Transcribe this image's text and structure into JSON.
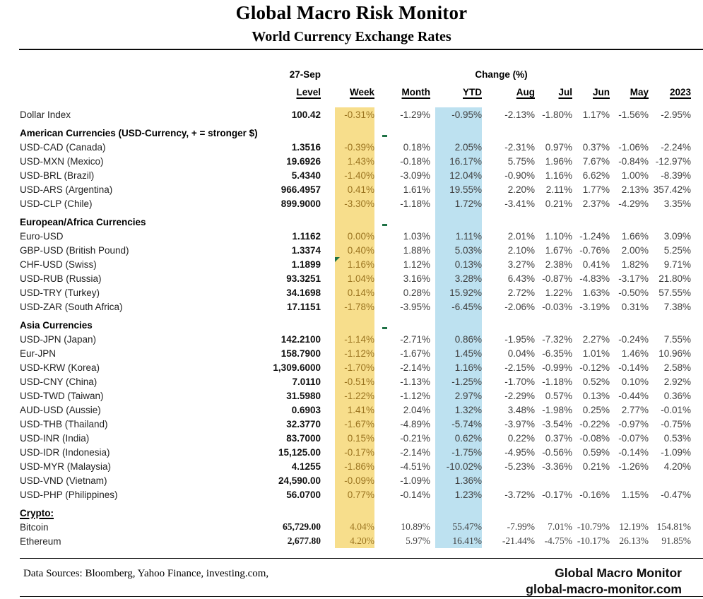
{
  "title": "Global Macro Risk Monitor",
  "subtitle": "World Currency Exchange Rates",
  "table": {
    "date_label": "27-Sep",
    "change_label": "Change (%)",
    "columns": [
      "Level",
      "Week",
      "Month",
      "YTD",
      "Aug",
      "Jul",
      "Jun",
      "May",
      "2023"
    ],
    "rows": [
      {
        "type": "data",
        "label": "Dollar Index",
        "level": "100.42",
        "week": "-0.31%",
        "month": "-1.29%",
        "ytd": "-0.95%",
        "aug": "-2.13%",
        "jul": "-1.80%",
        "jun": "1.17%",
        "may": "-1.56%",
        "y2023": "-2.95%"
      },
      {
        "type": "section",
        "label": "American Currencies (USD-Currency, + = stronger $)",
        "green_dash": true
      },
      {
        "type": "data",
        "label": "USD-CAD (Canada)",
        "level": "1.3516",
        "week": "-0.39%",
        "month": "0.18%",
        "ytd": "2.05%",
        "aug": "-2.31%",
        "jul": "0.97%",
        "jun": "0.37%",
        "may": "-1.06%",
        "y2023": "-2.24%"
      },
      {
        "type": "data",
        "label": "USD-MXN  (Mexico)",
        "level": "19.6926",
        "week": "1.43%",
        "month": "-0.18%",
        "ytd": "16.17%",
        "aug": "5.75%",
        "jul": "1.96%",
        "jun": "7.67%",
        "may": "-0.84%",
        "y2023": "-12.97%"
      },
      {
        "type": "data",
        "label": "USD-BRL (Brazil)",
        "level": "5.4340",
        "week": "-1.40%",
        "month": "-3.09%",
        "ytd": "12.04%",
        "aug": "-0.90%",
        "jul": "1.16%",
        "jun": "6.62%",
        "may": "1.00%",
        "y2023": "-8.39%"
      },
      {
        "type": "data",
        "label": "USD-ARS (Argentina)",
        "level": "966.4957",
        "week": "0.41%",
        "month": "1.61%",
        "ytd": "19.55%",
        "aug": "2.20%",
        "jul": "2.11%",
        "jun": "1.77%",
        "may": "2.13%",
        "y2023": "357.42%"
      },
      {
        "type": "data",
        "label": "USD-CLP (Chile)",
        "level": "899.9000",
        "week": "-3.30%",
        "month": "-1.18%",
        "ytd": "1.72%",
        "aug": "-3.41%",
        "jul": "0.21%",
        "jun": "2.37%",
        "may": "-4.29%",
        "y2023": "3.35%"
      },
      {
        "type": "section",
        "label": "European/Africa Currencies",
        "green_dash": true
      },
      {
        "type": "data",
        "label": "Euro-USD",
        "level": "1.1162",
        "week": "0.00%",
        "month": "1.03%",
        "ytd": "1.11%",
        "aug": "2.01%",
        "jul": "1.10%",
        "jun": "-1.24%",
        "may": "1.66%",
        "y2023": "3.09%"
      },
      {
        "type": "data",
        "label": "GBP-USD (British Pound)",
        "level": "1.3374",
        "week": "0.40%",
        "month": "1.88%",
        "ytd": "5.03%",
        "aug": "2.10%",
        "jul": "1.67%",
        "jun": "-0.76%",
        "may": "2.00%",
        "y2023": "5.25%"
      },
      {
        "type": "data",
        "label": "CHF-USD (Swiss)",
        "level": "1.1899",
        "week": "1.16%",
        "week_flag": true,
        "month": "1.12%",
        "ytd": "0.13%",
        "aug": "3.27%",
        "jul": "2.38%",
        "jun": "0.41%",
        "may": "1.82%",
        "y2023": "9.71%"
      },
      {
        "type": "data",
        "label": "USD-RUB (Russia)",
        "level": "93.3251",
        "week": "1.04%",
        "month": "3.16%",
        "ytd": "3.28%",
        "aug": "6.43%",
        "jul": "-0.87%",
        "jun": "-4.83%",
        "may": "-3.17%",
        "y2023": "21.80%"
      },
      {
        "type": "data",
        "label": "USD-TRY (Turkey)",
        "level": "34.1698",
        "week": "0.14%",
        "month": "0.28%",
        "ytd": "15.92%",
        "aug": "2.72%",
        "jul": "1.22%",
        "jun": "1.63%",
        "may": "-0.50%",
        "y2023": "57.55%"
      },
      {
        "type": "data",
        "label": "USD-ZAR (South Africa)",
        "level": "17.1151",
        "week": "-1.78%",
        "month": "-3.95%",
        "ytd": "-6.45%",
        "aug": "-2.06%",
        "jul": "-0.03%",
        "jun": "-3.19%",
        "may": "0.31%",
        "y2023": "7.38%"
      },
      {
        "type": "section",
        "label": "Asia Currencies",
        "green_dash": true
      },
      {
        "type": "data",
        "label": "USD-JPN (Japan)",
        "level": "142.2100",
        "week": "-1.14%",
        "month": "-2.71%",
        "ytd": "0.86%",
        "aug": "-1.95%",
        "jul": "-7.32%",
        "jun": "2.27%",
        "may": "-0.24%",
        "y2023": "7.55%"
      },
      {
        "type": "data",
        "label": "Eur-JPN",
        "level": "158.7900",
        "week": "-1.12%",
        "month": "-1.67%",
        "ytd": "1.45%",
        "aug": "0.04%",
        "jul": "-6.35%",
        "jun": "1.01%",
        "may": "1.46%",
        "y2023": "10.96%"
      },
      {
        "type": "data",
        "label": "USD-KRW (Korea)",
        "level": "1,309.6000",
        "week": "-1.70%",
        "month": "-2.14%",
        "ytd": "1.16%",
        "aug": "-2.15%",
        "jul": "-0.99%",
        "jun": "-0.12%",
        "may": "-0.14%",
        "y2023": "2.58%"
      },
      {
        "type": "data",
        "label": "USD-CNY (China)",
        "level": "7.0110",
        "week": "-0.51%",
        "month": "-1.13%",
        "ytd": "-1.25%",
        "aug": "-1.70%",
        "jul": "-1.18%",
        "jun": "0.52%",
        "may": "0.10%",
        "y2023": "2.92%"
      },
      {
        "type": "data",
        "label": "USD-TWD (Taiwan)",
        "level": "31.5980",
        "week": "-1.22%",
        "month": "-1.12%",
        "ytd": "2.97%",
        "aug": "-2.29%",
        "jul": "0.57%",
        "jun": "0.13%",
        "may": "-0.44%",
        "y2023": "0.36%"
      },
      {
        "type": "data",
        "label": "AUD-USD (Aussie)",
        "level": "0.6903",
        "week": "1.41%",
        "month": "2.04%",
        "ytd": "1.32%",
        "aug": "3.48%",
        "jul": "-1.98%",
        "jun": "0.25%",
        "may": "2.77%",
        "y2023": "-0.01%"
      },
      {
        "type": "data",
        "label": "USD-THB  (Thailand)",
        "level": "32.3770",
        "week": "-1.67%",
        "month": "-4.89%",
        "ytd": "-5.74%",
        "aug": "-3.97%",
        "jul": "-3.54%",
        "jun": "-0.22%",
        "may": "-0.97%",
        "y2023": "-0.75%"
      },
      {
        "type": "data",
        "label": "USD-INR (India)",
        "level": "83.7000",
        "week": "0.15%",
        "month": "-0.21%",
        "ytd": "0.62%",
        "aug": "0.22%",
        "jul": "0.37%",
        "jun": "-0.08%",
        "may": "-0.07%",
        "y2023": "0.53%"
      },
      {
        "type": "data",
        "label": "USD-IDR (Indonesia)",
        "level": "15,125.00",
        "week": "-0.17%",
        "month": "-2.14%",
        "ytd": "-1.75%",
        "aug": "-4.95%",
        "jul": "-0.56%",
        "jun": "0.59%",
        "may": "-0.14%",
        "y2023": "-1.09%"
      },
      {
        "type": "data",
        "label": "USD-MYR (Malaysia)",
        "level": "4.1255",
        "week": "-1.86%",
        "month": "-4.51%",
        "ytd": "-10.02%",
        "aug": "-5.23%",
        "jul": "-3.36%",
        "jun": "0.21%",
        "may": "-1.26%",
        "y2023": "4.20%"
      },
      {
        "type": "data",
        "label": "USD-VND (Vietnam)",
        "level": "24,590.00",
        "week": "-0.09%",
        "month": "-1.09%",
        "ytd": "1.36%",
        "aug": "",
        "jul": "",
        "jun": "",
        "may": "",
        "y2023": ""
      },
      {
        "type": "data",
        "label": "USD-PHP (Philippines)",
        "level": "56.0700",
        "week": "0.77%",
        "month": "-0.14%",
        "ytd": "1.23%",
        "aug": "-3.72%",
        "jul": "-0.17%",
        "jun": "-0.16%",
        "may": "1.15%",
        "y2023": "-0.47%"
      },
      {
        "type": "section",
        "label": "Crypto:",
        "underline": true,
        "green_dash": false
      },
      {
        "type": "data",
        "label": "Bitcoin",
        "serif": true,
        "level": "65,729.00",
        "week": "4.04%",
        "month": "10.89%",
        "ytd": "55.47%",
        "aug": "-7.99%",
        "jul": "7.01%",
        "jun": "-10.79%",
        "may": "12.19%",
        "y2023": "154.81%"
      },
      {
        "type": "data",
        "label": "Ethereum",
        "serif": true,
        "level": "2,677.80",
        "week": "4.20%",
        "month": "5.97%",
        "ytd": "16.41%",
        "aug": "-21.44%",
        "jul": "-4.75%",
        "jun": "-10.17%",
        "may": "26.13%",
        "y2023": "91.85%"
      }
    ]
  },
  "footer": {
    "data_sources": "Data Sources:  Bloomberg,  Yahoo Finance, investing.com,",
    "brand_line1": "Global Macro Monitor",
    "brand_line2": "global-macro-monitor.com"
  },
  "colors": {
    "week_highlight": "#F7DE8C",
    "week_text": "#9A731F",
    "ytd_highlight": "#BDE1F0",
    "marker_green": "#1E7145"
  }
}
